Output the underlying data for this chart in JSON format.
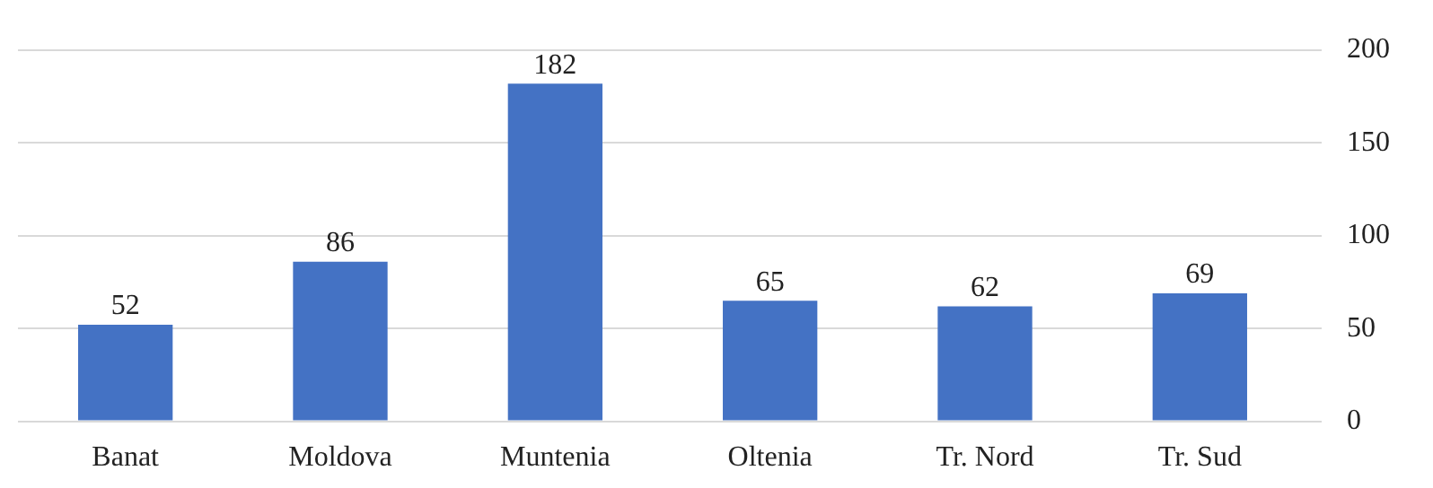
{
  "chart_data": {
    "type": "bar",
    "categories": [
      "Banat",
      "Moldova",
      "Muntenia",
      "Oltenia",
      "Tr. Nord",
      "Tr. Sud"
    ],
    "values": [
      52,
      86,
      182,
      65,
      62,
      69
    ],
    "color": "#4472c4",
    "ylim": [
      0,
      200
    ],
    "yticks": [
      0,
      50,
      100,
      150,
      200
    ],
    "grid": "y",
    "data_labels": true,
    "legend": false
  }
}
